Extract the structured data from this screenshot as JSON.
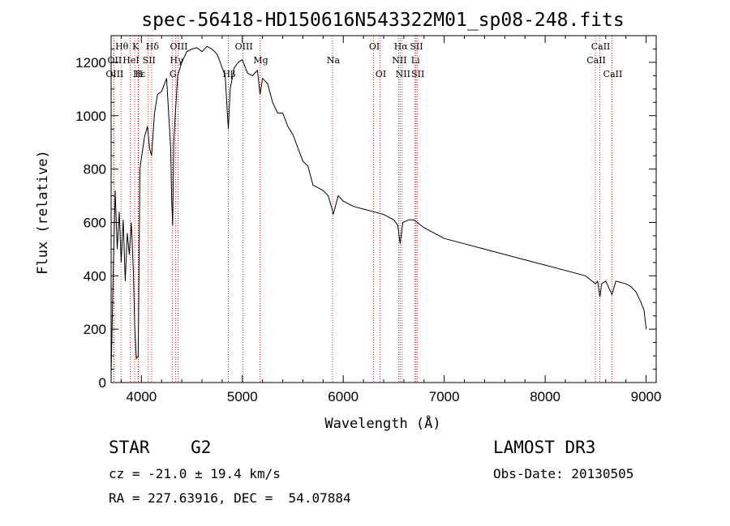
{
  "chart_data": {
    "type": "line",
    "title": "spec-56418-HD150616N543322M01_sp08-248.fits",
    "xlabel": "Wavelength (Å)",
    "ylabel": "Flux (relative)",
    "xlim": [
      3700,
      9100
    ],
    "ylim": [
      0,
      1300
    ],
    "xticks": [
      4000,
      5000,
      6000,
      7000,
      8000,
      9000
    ],
    "xtick_labels": [
      "4000",
      "5000",
      "6000",
      "7000",
      "8000",
      "9000"
    ],
    "yticks": [
      0,
      200,
      400,
      600,
      800,
      1000,
      1200
    ],
    "ytick_labels": [
      "0",
      "200",
      "400",
      "600",
      "800",
      "1000",
      "1200"
    ],
    "series": [
      {
        "name": "spectrum",
        "x": [
          3700,
          3720,
          3740,
          3760,
          3780,
          3800,
          3820,
          3840,
          3860,
          3880,
          3900,
          3920,
          3935,
          3950,
          3968,
          3985,
          4000,
          4030,
          4060,
          4080,
          4101,
          4130,
          4160,
          4200,
          4250,
          4290,
          4300,
          4310,
          4320,
          4340,
          4360,
          4400,
          4450,
          4500,
          4550,
          4600,
          4650,
          4700,
          4750,
          4800,
          4830,
          4861,
          4880,
          4920,
          4960,
          5000,
          5050,
          5100,
          5150,
          5175,
          5200,
          5250,
          5300,
          5350,
          5400,
          5450,
          5500,
          5550,
          5600,
          5650,
          5700,
          5750,
          5800,
          5850,
          5890,
          5900,
          5950,
          6000,
          6100,
          6200,
          6300,
          6400,
          6500,
          6540,
          6563,
          6590,
          6650,
          6700,
          6800,
          6900,
          7000,
          7200,
          7400,
          7600,
          7800,
          8000,
          8200,
          8400,
          8498,
          8520,
          8542,
          8560,
          8600,
          8662,
          8700,
          8800,
          8850,
          8900,
          8950,
          8980,
          9000
        ],
        "values": [
          30,
          400,
          720,
          500,
          640,
          450,
          610,
          380,
          560,
          480,
          600,
          420,
          200,
          90,
          100,
          800,
          840,
          920,
          960,
          880,
          850,
          1010,
          1080,
          1090,
          1140,
          880,
          680,
          590,
          900,
          1030,
          1150,
          1200,
          1240,
          1250,
          1255,
          1240,
          1260,
          1250,
          1230,
          1180,
          1150,
          950,
          1100,
          1180,
          1200,
          1210,
          1160,
          1150,
          1170,
          1080,
          1140,
          1120,
          1050,
          1010,
          1010,
          960,
          930,
          880,
          830,
          810,
          740,
          730,
          720,
          700,
          650,
          630,
          700,
          680,
          660,
          650,
          640,
          630,
          610,
          590,
          520,
          600,
          610,
          610,
          580,
          560,
          540,
          520,
          500,
          480,
          460,
          440,
          420,
          400,
          370,
          380,
          320,
          370,
          380,
          330,
          380,
          370,
          360,
          340,
          300,
          270,
          200
        ]
      }
    ],
    "line_markers": [
      {
        "label": "Hθ",
        "x": 3798,
        "row": 0
      },
      {
        "label": "OII",
        "x": 3727,
        "row": 1
      },
      {
        "label": "OIII",
        "x": 3727,
        "row": 2
      },
      {
        "label": "K",
        "x": 3934,
        "row": 0
      },
      {
        "label": "HeI",
        "x": 3889,
        "row": 1
      },
      {
        "label": "Hε",
        "x": 3970,
        "row": 2
      },
      {
        "label": "SII",
        "x": 4068,
        "row": 1
      },
      {
        "label": "Hδ",
        "x": 4101,
        "row": 0
      },
      {
        "label": "H",
        "x": 3968,
        "row": 2
      },
      {
        "label": "OIII",
        "x": 4363,
        "row": 0
      },
      {
        "label": "Hγ",
        "x": 4340,
        "row": 1
      },
      {
        "label": "G",
        "x": 4305,
        "row": 2
      },
      {
        "label": "Hβ",
        "x": 4861,
        "row": 2
      },
      {
        "label": "OIII",
        "x": 5007,
        "row": 0
      },
      {
        "label": "Mg",
        "x": 5175,
        "row": 1
      },
      {
        "label": "Na",
        "x": 5893,
        "row": 1
      },
      {
        "label": "OI",
        "x": 6300,
        "row": 0
      },
      {
        "label": "OI",
        "x": 6364,
        "row": 2
      },
      {
        "label": "Hα",
        "x": 6563,
        "row": 0
      },
      {
        "label": "NII",
        "x": 6548,
        "row": 1
      },
      {
        "label": "NII",
        "x": 6583,
        "row": 2
      },
      {
        "label": "SII",
        "x": 6717,
        "row": 0
      },
      {
        "label": "Li",
        "x": 6707,
        "row": 1
      },
      {
        "label": "SII",
        "x": 6731,
        "row": 2
      },
      {
        "label": "CaII",
        "x": 8542,
        "row": 0
      },
      {
        "label": "CaII",
        "x": 8498,
        "row": 1
      },
      {
        "label": "CaII",
        "x": 8662,
        "row": 2
      }
    ],
    "line_marker_color": "#cc0000"
  },
  "info": {
    "class_line": "STAR    G2",
    "survey": "LAMOST DR3",
    "cz_line": "cz = -21.0 ± 19.4 km/s",
    "obs_date": "Obs-Date: 20130505",
    "coords_line": "RA = 227.63916, DEC =  54.07884"
  }
}
